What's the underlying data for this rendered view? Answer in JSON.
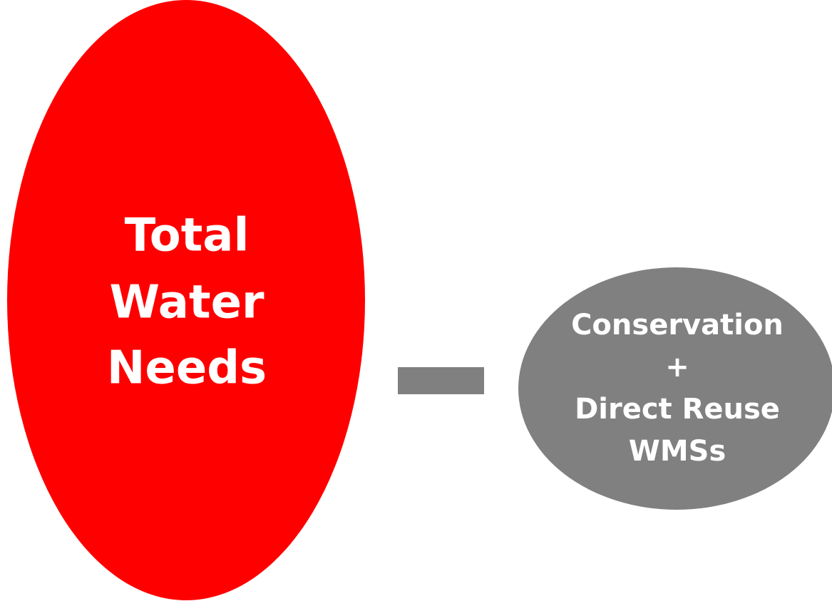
{
  "nodes": [
    {
      "lines": [
        "Total",
        "Water",
        "Needs"
      ]
    },
    {
      "lines": [
        "Conservation",
        "+",
        "Direct Reuse",
        "WMSs"
      ]
    }
  ]
}
